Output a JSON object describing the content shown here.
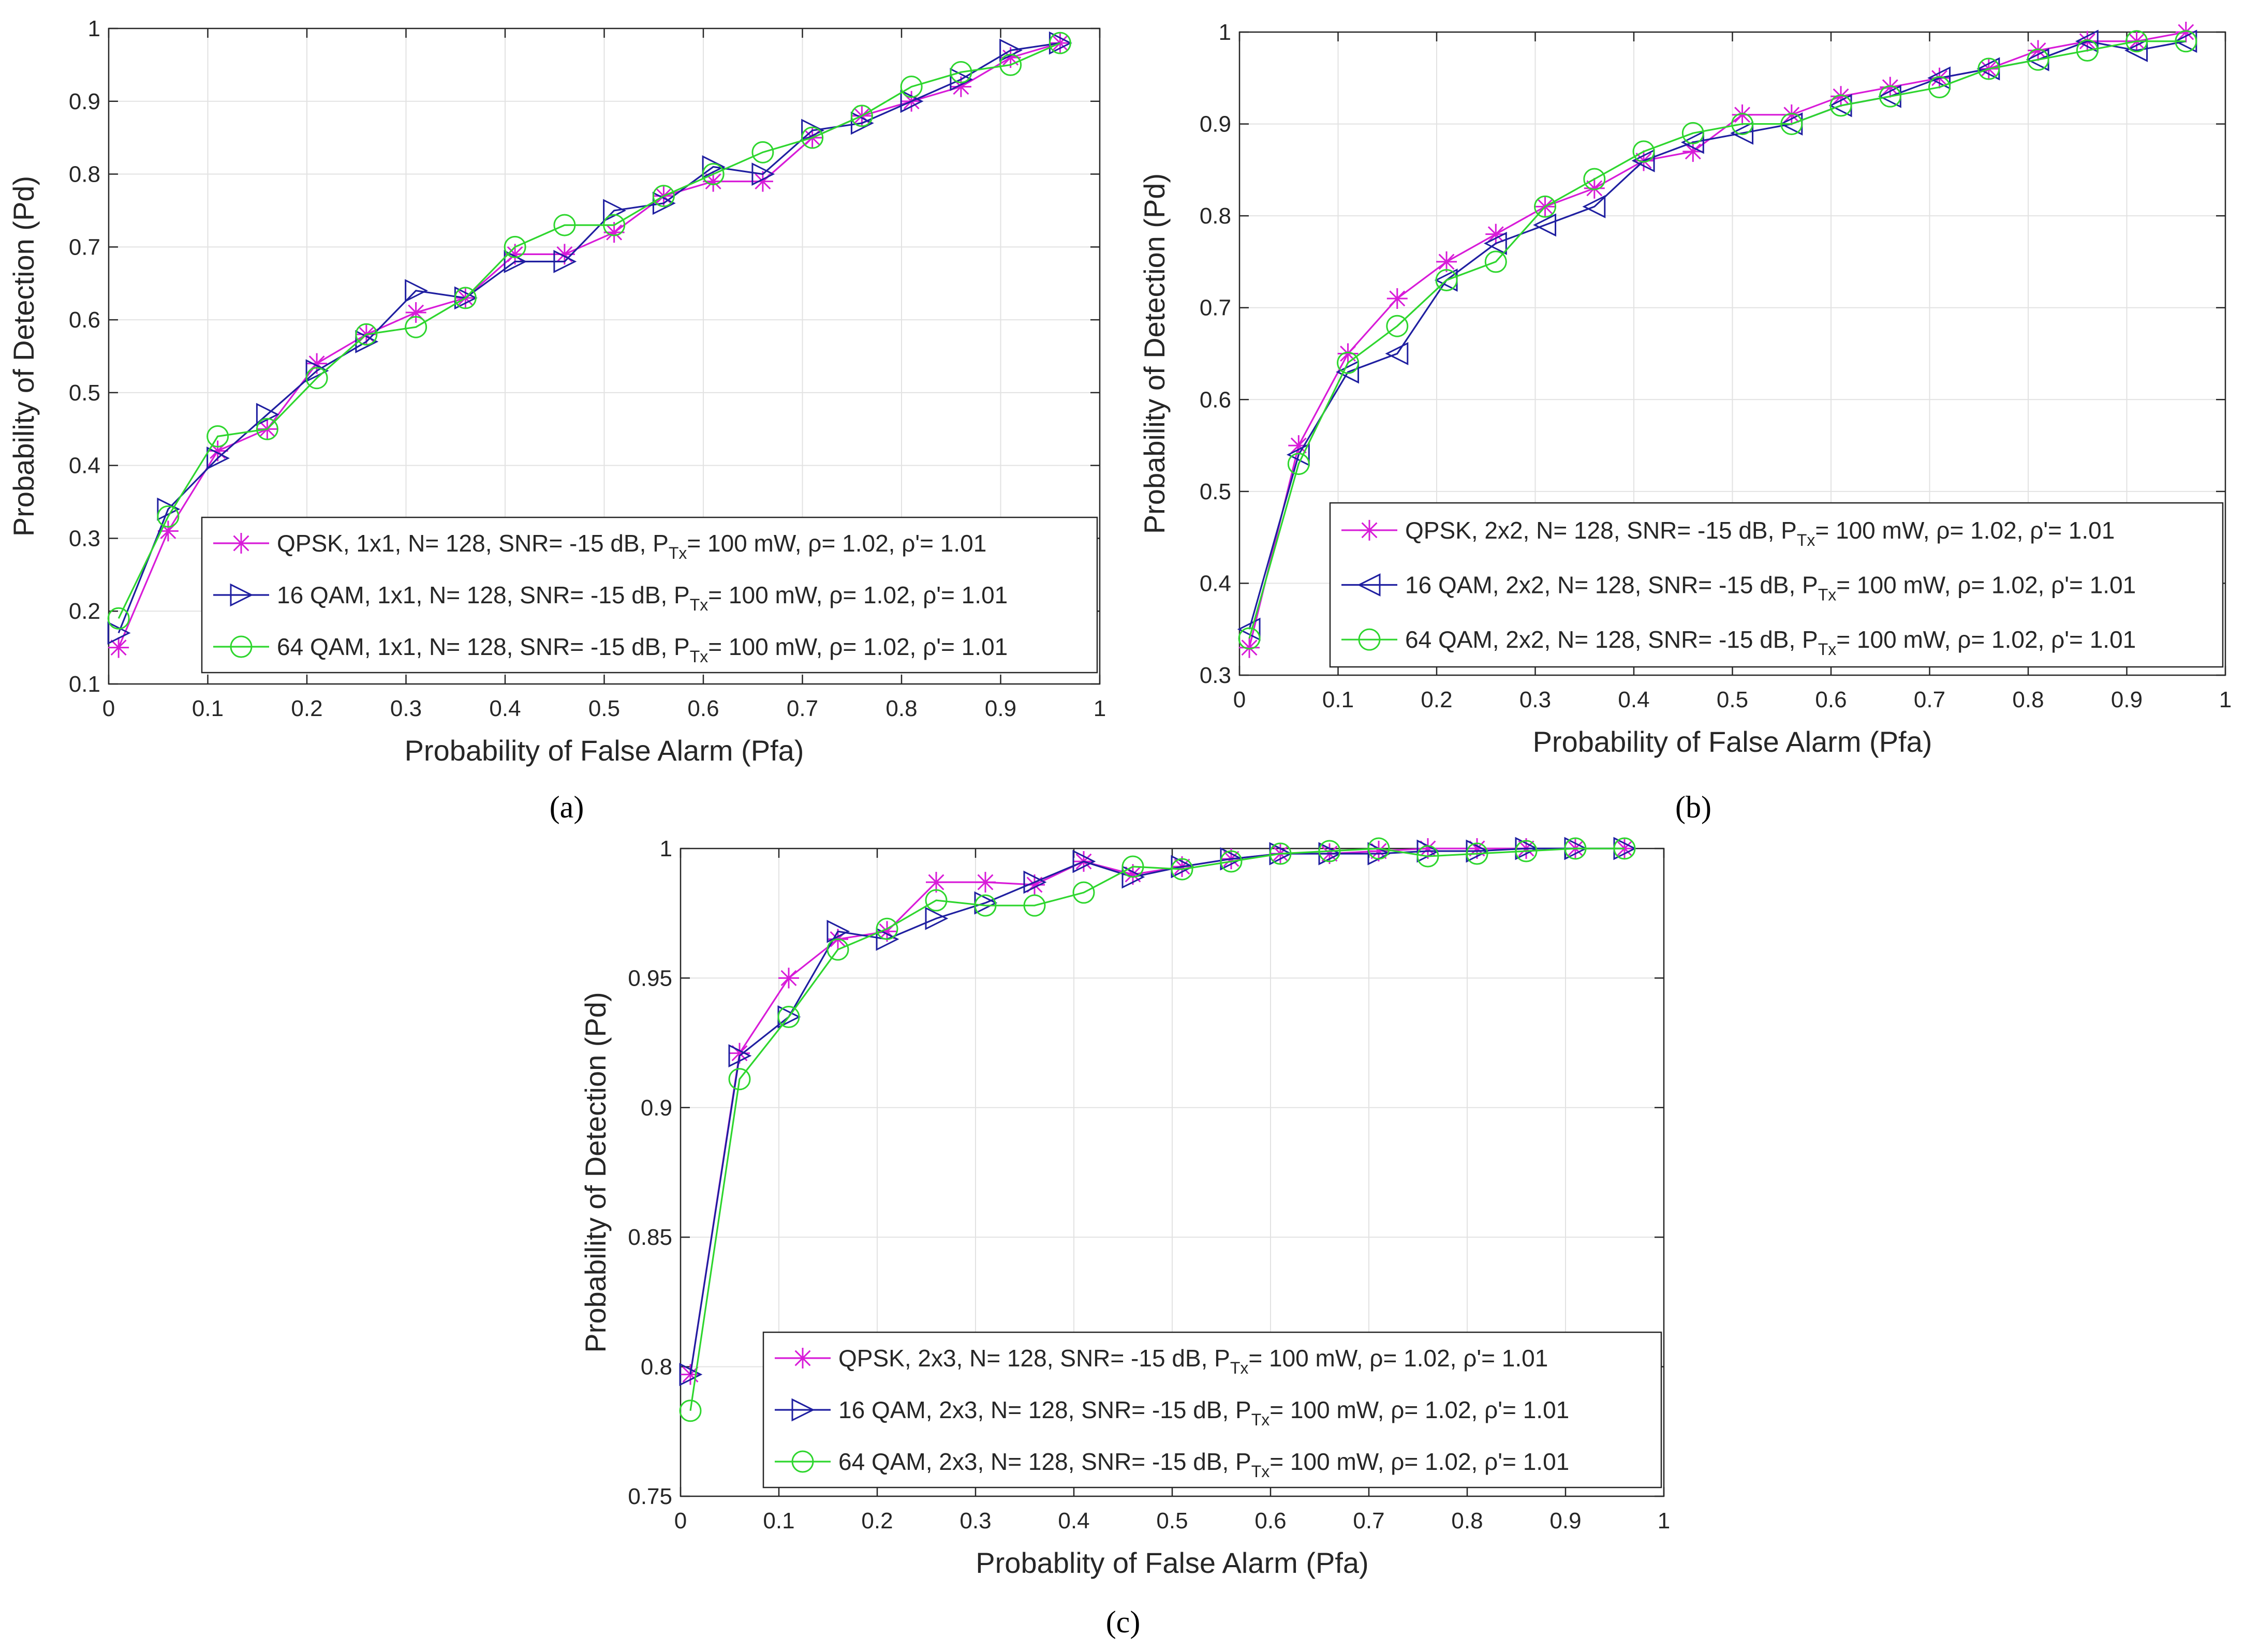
{
  "chart_data": [
    {
      "type": "line",
      "caption": "(a)",
      "xlabel": "Probability of False Alarm (Pfa)",
      "ylabel": "Probability of Detection (Pd)",
      "xlim": [
        0,
        1
      ],
      "ylim": [
        0.1,
        1
      ],
      "xticks": [
        0,
        0.1,
        0.2,
        0.3,
        0.4,
        0.5,
        0.6,
        0.7,
        0.8,
        0.9,
        1
      ],
      "xtick_labels": [
        "0",
        "0.1",
        "0.2",
        "0.3",
        "0.4",
        "0.5",
        "0.6",
        "0.7",
        "0.8",
        "0.9",
        "1"
      ],
      "yticks": [
        0.1,
        0.2,
        0.3,
        0.4,
        0.5,
        0.6,
        0.7,
        0.8,
        0.9,
        1
      ],
      "ytick_labels": [
        "0.1",
        "0.2",
        "0.3",
        "0.4",
        "0.5",
        "0.6",
        "0.7",
        "0.8",
        "0.9",
        "1"
      ],
      "grid": true,
      "legend_position": "bottom-right",
      "x": [
        0.01,
        0.06,
        0.11,
        0.16,
        0.21,
        0.26,
        0.31,
        0.36,
        0.41,
        0.46,
        0.51,
        0.56,
        0.61,
        0.66,
        0.71,
        0.76,
        0.81,
        0.86,
        0.91,
        0.96
      ],
      "series": [
        {
          "name": "QPSK, 1x1, N= 128, SNR= -15 dB, P",
          "sub": "Tx",
          "name_tail": "= 100 mW, ρ= 1.02, ρ'= 1.01",
          "color": "#d81bd8",
          "marker": "asterisk",
          "values": [
            0.15,
            0.31,
            0.42,
            0.45,
            0.54,
            0.58,
            0.61,
            0.63,
            0.69,
            0.69,
            0.72,
            0.77,
            0.79,
            0.79,
            0.85,
            0.88,
            0.9,
            0.92,
            0.96,
            0.98
          ]
        },
        {
          "name": "16 QAM, 1x1, N= 128, SNR= -15 dB, P",
          "sub": "Tx",
          "name_tail": "= 100 mW, ρ= 1.02, ρ'= 1.01",
          "color": "#1f1fa0",
          "marker": "triangle-right",
          "values": [
            0.17,
            0.34,
            0.41,
            0.47,
            0.53,
            0.57,
            0.64,
            0.63,
            0.68,
            0.68,
            0.75,
            0.76,
            0.81,
            0.8,
            0.86,
            0.87,
            0.9,
            0.93,
            0.97,
            0.98
          ]
        },
        {
          "name": "64 QAM, 1x1, N= 128, SNR= -15 dB, P",
          "sub": "Tx",
          "name_tail": "= 100 mW, ρ= 1.02, ρ'= 1.01",
          "color": "#2ed62e",
          "marker": "circle",
          "values": [
            0.19,
            0.33,
            0.44,
            0.45,
            0.52,
            0.58,
            0.59,
            0.63,
            0.7,
            0.73,
            0.73,
            0.77,
            0.8,
            0.83,
            0.85,
            0.88,
            0.92,
            0.94,
            0.95,
            0.98
          ]
        }
      ]
    },
    {
      "type": "line",
      "caption": "(b)",
      "xlabel": "Probability of False Alarm (Pfa)",
      "ylabel": "Probability of Detection (Pd)",
      "xlim": [
        0,
        1
      ],
      "ylim": [
        0.3,
        1
      ],
      "xticks": [
        0,
        0.1,
        0.2,
        0.3,
        0.4,
        0.5,
        0.6,
        0.7,
        0.8,
        0.9,
        1
      ],
      "xtick_labels": [
        "0",
        "0.1",
        "0.2",
        "0.3",
        "0.4",
        "0.5",
        "0.6",
        "0.7",
        "0.8",
        "0.9",
        "1"
      ],
      "yticks": [
        0.3,
        0.4,
        0.5,
        0.6,
        0.7,
        0.8,
        0.9,
        1
      ],
      "ytick_labels": [
        "0.3",
        "0.4",
        "0.5",
        "0.6",
        "0.7",
        "0.8",
        "0.9",
        "1"
      ],
      "grid": true,
      "legend_position": "bottom-right",
      "x": [
        0.01,
        0.06,
        0.11,
        0.16,
        0.21,
        0.26,
        0.31,
        0.36,
        0.41,
        0.46,
        0.51,
        0.56,
        0.61,
        0.66,
        0.71,
        0.76,
        0.81,
        0.86,
        0.91,
        0.96
      ],
      "series": [
        {
          "name": "QPSK, 2x2, N= 128, SNR= -15 dB, P",
          "sub": "Tx",
          "name_tail": "= 100 mW, ρ= 1.02, ρ'= 1.01",
          "color": "#d81bd8",
          "marker": "asterisk",
          "values": [
            0.33,
            0.55,
            0.65,
            0.71,
            0.75,
            0.78,
            0.81,
            0.83,
            0.86,
            0.87,
            0.91,
            0.91,
            0.93,
            0.94,
            0.95,
            0.96,
            0.98,
            0.99,
            0.99,
            1.0
          ]
        },
        {
          "name": "16 QAM, 2x2, N= 128, SNR= -15 dB, P",
          "sub": "Tx",
          "name_tail": "= 100 mW, ρ= 1.02, ρ'= 1.01",
          "color": "#1f1fa0",
          "marker": "triangle-left",
          "values": [
            0.35,
            0.54,
            0.63,
            0.65,
            0.73,
            0.77,
            0.79,
            0.81,
            0.86,
            0.88,
            0.89,
            0.9,
            0.92,
            0.93,
            0.95,
            0.96,
            0.97,
            0.99,
            0.98,
            0.99
          ]
        },
        {
          "name": "64 QAM, 2x2, N= 128, SNR= -15 dB, P",
          "sub": "Tx",
          "name_tail": "= 100 mW, ρ= 1.02, ρ'= 1.01",
          "color": "#2ed62e",
          "marker": "circle",
          "values": [
            0.34,
            0.53,
            0.64,
            0.68,
            0.73,
            0.75,
            0.81,
            0.84,
            0.87,
            0.89,
            0.9,
            0.9,
            0.92,
            0.93,
            0.94,
            0.96,
            0.97,
            0.98,
            0.99,
            0.99
          ]
        }
      ]
    },
    {
      "type": "line",
      "caption": "(c)",
      "xlabel": "Probablity of False Alarm (Pfa)",
      "ylabel": "Probability of Detection (Pd)",
      "xlim": [
        0,
        1
      ],
      "ylim": [
        0.75,
        1
      ],
      "xticks": [
        0,
        0.1,
        0.2,
        0.3,
        0.4,
        0.5,
        0.6,
        0.7,
        0.8,
        0.9,
        1
      ],
      "xtick_labels": [
        "0",
        "0.1",
        "0.2",
        "0.3",
        "0.4",
        "0.5",
        "0.6",
        "0.7",
        "0.8",
        "0.9",
        "1"
      ],
      "yticks": [
        0.75,
        0.8,
        0.85,
        0.9,
        0.95,
        1
      ],
      "ytick_labels": [
        "0.75",
        "0.8",
        "0.85",
        "0.9",
        "0.95",
        "1"
      ],
      "grid": true,
      "legend_position": "bottom-right",
      "x": [
        0.01,
        0.06,
        0.11,
        0.16,
        0.21,
        0.26,
        0.31,
        0.36,
        0.41,
        0.46,
        0.51,
        0.56,
        0.61,
        0.66,
        0.71,
        0.76,
        0.81,
        0.86,
        0.91,
        0.96
      ],
      "series": [
        {
          "name": "QPSK, 2x3, N= 128, SNR= -15 dB, P",
          "sub": "Tx",
          "name_tail": "= 100 mW, ρ= 1.02, ρ'= 1.01",
          "color": "#d81bd8",
          "marker": "asterisk",
          "values": [
            0.797,
            0.921,
            0.95,
            0.965,
            0.968,
            0.987,
            0.987,
            0.986,
            0.995,
            0.99,
            0.993,
            0.996,
            0.998,
            0.998,
            0.999,
            1.0,
            1.0,
            1.0,
            1.0,
            1.0
          ]
        },
        {
          "name": "16 QAM, 2x3, N= 128, SNR= -15 dB, P",
          "sub": "Tx",
          "name_tail": "= 100 mW, ρ= 1.02, ρ'= 1.01",
          "color": "#1f1fa0",
          "marker": "triangle-right",
          "values": [
            0.797,
            0.92,
            0.935,
            0.968,
            0.965,
            0.973,
            0.979,
            0.987,
            0.995,
            0.989,
            0.993,
            0.996,
            0.998,
            0.998,
            0.998,
            0.999,
            0.999,
            1.0,
            1.0,
            1.0
          ]
        },
        {
          "name": "64 QAM, 2x3, N= 128, SNR= -15 dB, P",
          "sub": "Tx",
          "name_tail": "= 100 mW, ρ= 1.02, ρ'= 1.01",
          "color": "#2ed62e",
          "marker": "circle",
          "values": [
            0.783,
            0.911,
            0.935,
            0.961,
            0.969,
            0.98,
            0.978,
            0.978,
            0.983,
            0.993,
            0.992,
            0.995,
            0.998,
            0.999,
            1.0,
            0.997,
            0.998,
            0.999,
            1.0,
            1.0
          ]
        }
      ]
    }
  ]
}
